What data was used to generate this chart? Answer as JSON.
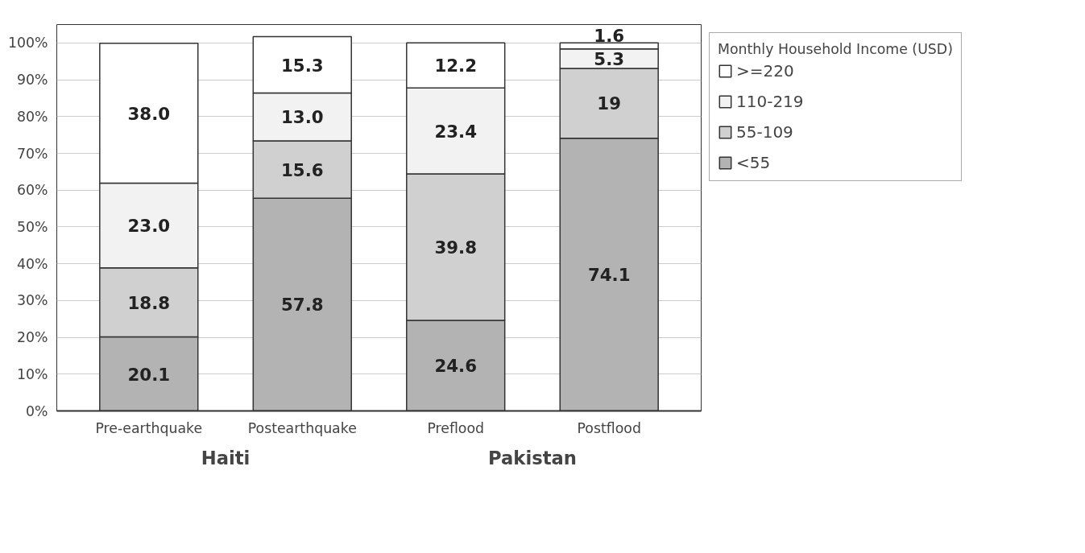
{
  "chart_data": {
    "type": "bar",
    "stacked": true,
    "categories": [
      "Pre-earthquake",
      "Postearthquake",
      "Preflood",
      "Postflood"
    ],
    "series": [
      {
        "name": "<55",
        "color": "#b3b3b3",
        "values": [
          20.1,
          57.8,
          24.6,
          74.1
        ],
        "value_labels": [
          "20.1",
          "57.8",
          "24.6",
          "74.1"
        ]
      },
      {
        "name": "55-109",
        "color": "#d0d0d0",
        "values": [
          18.8,
          15.6,
          39.8,
          19
        ],
        "value_labels": [
          "18.8",
          "15.6",
          "39.8",
          "19"
        ]
      },
      {
        "name": "110-219",
        "color": "#f2f2f2",
        "values": [
          23.0,
          13.0,
          23.4,
          5.3
        ],
        "value_labels": [
          "23.0",
          "13.0",
          "23.4",
          "5.3"
        ]
      },
      {
        "name": ">=220",
        "color": "#ffffff",
        "values": [
          38.0,
          15.3,
          12.2,
          1.6
        ],
        "value_labels": [
          "38.0",
          "15.3",
          "12.2",
          "1.6"
        ]
      }
    ],
    "ylim": [
      0,
      105
    ],
    "yticks": [
      {
        "value": 0,
        "label": "0%"
      },
      {
        "value": 10,
        "label": "10%"
      },
      {
        "value": 20,
        "label": "20%"
      },
      {
        "value": 30,
        "label": "30%"
      },
      {
        "value": 40,
        "label": "40%"
      },
      {
        "value": 50,
        "label": "50%"
      },
      {
        "value": 60,
        "label": "60%"
      },
      {
        "value": 70,
        "label": "70%"
      },
      {
        "value": 80,
        "label": "80%"
      },
      {
        "value": 90,
        "label": "90%"
      },
      {
        "value": 100,
        "label": "100%"
      }
    ],
    "grid": "y",
    "legend": "right",
    "legend_title": "Monthly Household Income (USD)",
    "annotations": [
      "Haiti",
      "Pakistan"
    ]
  }
}
